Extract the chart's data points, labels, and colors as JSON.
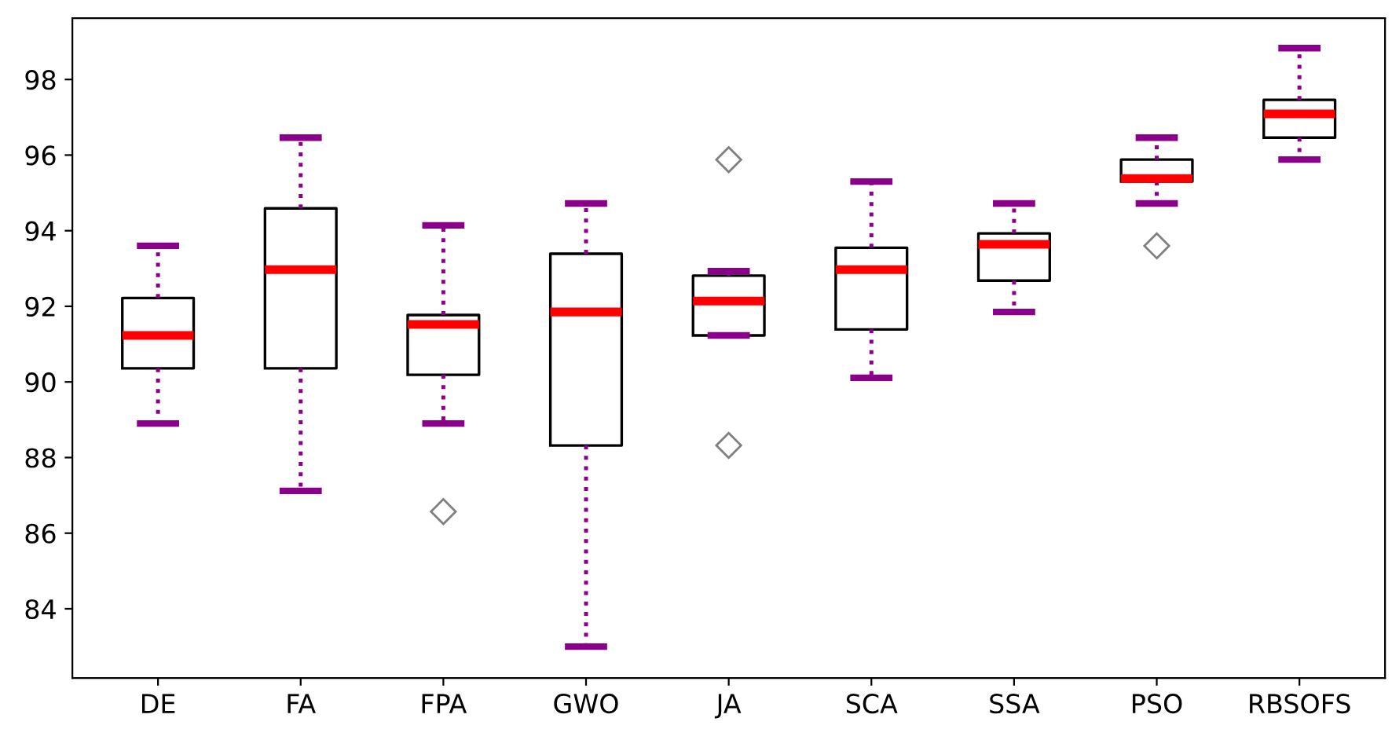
{
  "chart_data": {
    "type": "box",
    "categories": [
      "DE",
      "FA",
      "FPA",
      "GWO",
      "JA",
      "SCA",
      "SSA",
      "PSO",
      "RBSOFS"
    ],
    "color": "#000000",
    "boxes": [
      {
        "low": 88.9,
        "q1": 90.36,
        "median": 91.23,
        "q3": 92.22,
        "high": 93.6
      },
      {
        "low": 87.12,
        "q1": 90.36,
        "median": 92.97,
        "q3": 94.59,
        "high": 96.46
      },
      {
        "low": 88.9,
        "q1": 90.19,
        "median": 91.52,
        "q3": 91.77,
        "high": 94.14,
        "outliers": [
          86.57
        ]
      },
      {
        "low": 83.0,
        "q1": 88.32,
        "median": 91.85,
        "q3": 93.39,
        "high": 94.72
      },
      {
        "low": 91.23,
        "q1": 91.23,
        "median": 92.14,
        "q3": 92.81,
        "high": 92.93,
        "outliers": [
          95.88,
          88.32
        ]
      },
      {
        "low": 90.11,
        "q1": 91.39,
        "median": 92.97,
        "q3": 93.55,
        "high": 95.3
      },
      {
        "low": 91.85,
        "q1": 92.68,
        "median": 93.64,
        "q3": 93.93,
        "high": 94.72
      },
      {
        "low": 94.72,
        "q1": 95.3,
        "median": 95.38,
        "q3": 95.88,
        "high": 96.46,
        "outliers": [
          93.6
        ]
      },
      {
        "low": 95.88,
        "q1": 96.46,
        "median": 97.09,
        "q3": 97.46,
        "high": 98.83
      }
    ],
    "ylim": [
      82.17,
      99.62
    ],
    "yticks": [
      84,
      86,
      88,
      90,
      92,
      94,
      96,
      98
    ],
    "grid": false
  }
}
